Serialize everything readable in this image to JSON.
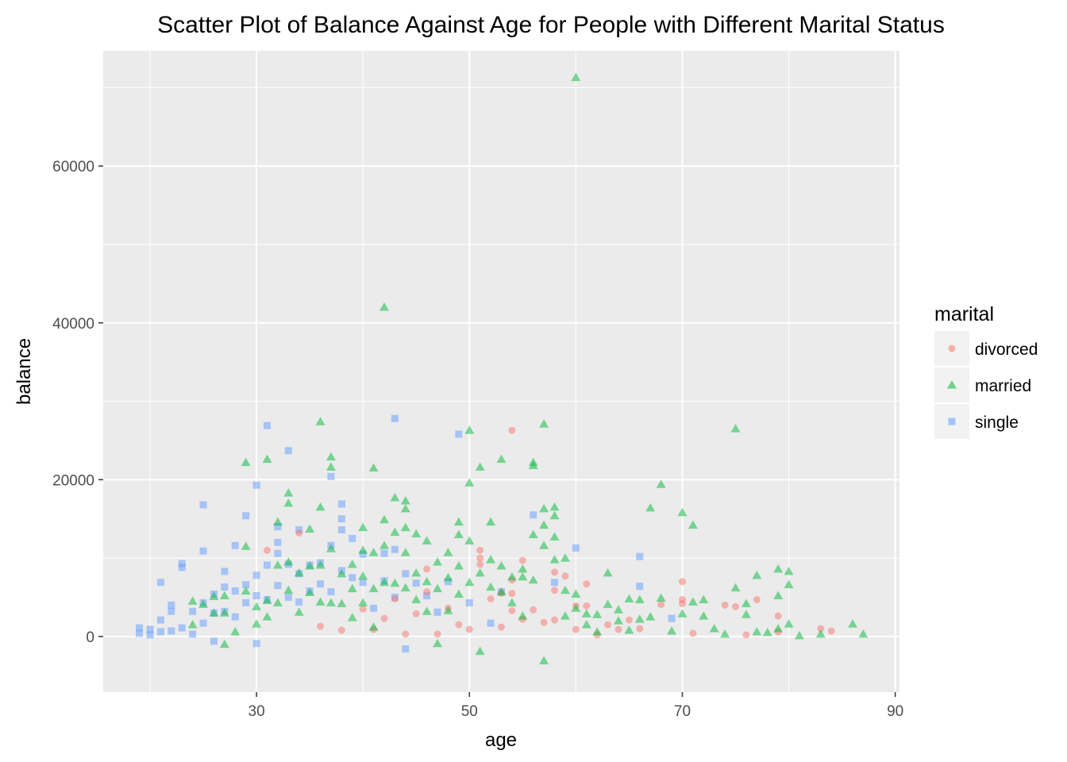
{
  "chart_data": {
    "type": "scatter",
    "title": "Scatter Plot of Balance Against Age for People with Different Marital Status",
    "xlabel": "age",
    "ylabel": "balance",
    "xlim": [
      15.6,
      90.4
    ],
    "ylim": [
      -7100,
      74700
    ],
    "x_ticks": [
      30,
      50,
      70,
      90
    ],
    "x_minor_ticks": [
      20,
      40,
      60,
      80
    ],
    "y_ticks": [
      0,
      20000,
      40000,
      60000
    ],
    "y_minor_ticks": [
      -10000,
      10000,
      30000,
      50000,
      70000
    ],
    "grid": true,
    "panel_background": "#ebebeb",
    "legend": {
      "title": "marital",
      "placement": "right",
      "entries": [
        {
          "label": "divorced",
          "shape": "circle",
          "color": "#F8766D"
        },
        {
          "label": "married",
          "shape": "triangle",
          "color": "#00BA38"
        },
        {
          "label": "single",
          "shape": "square",
          "color": "#619CFF"
        }
      ]
    },
    "series": [
      {
        "name": "divorced",
        "shape": "circle",
        "color": "#F8766D",
        "points": [
          [
            31,
            11000
          ],
          [
            34,
            13200
          ],
          [
            36,
            1300
          ],
          [
            38,
            800
          ],
          [
            40,
            3500
          ],
          [
            41,
            900
          ],
          [
            42,
            2300
          ],
          [
            43,
            4800
          ],
          [
            44,
            300
          ],
          [
            45,
            2900
          ],
          [
            46,
            8600
          ],
          [
            46,
            5700
          ],
          [
            47,
            300
          ],
          [
            48,
            3600
          ],
          [
            49,
            1500
          ],
          [
            50,
            900
          ],
          [
            51,
            11000
          ],
          [
            51,
            10000
          ],
          [
            51,
            9200
          ],
          [
            52,
            4800
          ],
          [
            53,
            5500
          ],
          [
            53,
            1200
          ],
          [
            54,
            26300
          ],
          [
            54,
            7200
          ],
          [
            54,
            5500
          ],
          [
            54,
            3300
          ],
          [
            55,
            9700
          ],
          [
            55,
            2200
          ],
          [
            56,
            3400
          ],
          [
            57,
            1800
          ],
          [
            58,
            8200
          ],
          [
            58,
            5900
          ],
          [
            58,
            2100
          ],
          [
            59,
            7700
          ],
          [
            60,
            3900
          ],
          [
            60,
            900
          ],
          [
            61,
            6700
          ],
          [
            61,
            3900
          ],
          [
            62,
            200
          ],
          [
            63,
            1500
          ],
          [
            64,
            900
          ],
          [
            65,
            2100
          ],
          [
            66,
            1000
          ],
          [
            68,
            4100
          ],
          [
            70,
            7000
          ],
          [
            70,
            4700
          ],
          [
            70,
            4200
          ],
          [
            71,
            400
          ],
          [
            74,
            4000
          ],
          [
            75,
            3800
          ],
          [
            76,
            200
          ],
          [
            77,
            4700
          ],
          [
            79,
            2600
          ],
          [
            79,
            600
          ],
          [
            83,
            1000
          ],
          [
            84,
            700
          ]
        ]
      },
      {
        "name": "married",
        "shape": "triangle",
        "color": "#00BA38",
        "points": [
          [
            24,
            4500
          ],
          [
            24,
            1500
          ],
          [
            25,
            4100
          ],
          [
            26,
            5100
          ],
          [
            26,
            3000
          ],
          [
            27,
            5200
          ],
          [
            27,
            3000
          ],
          [
            27,
            -1000
          ],
          [
            28,
            600
          ],
          [
            29,
            22200
          ],
          [
            29,
            11500
          ],
          [
            29,
            5800
          ],
          [
            30,
            3800
          ],
          [
            30,
            1600
          ],
          [
            31,
            22600
          ],
          [
            31,
            4600
          ],
          [
            31,
            2500
          ],
          [
            32,
            14600
          ],
          [
            32,
            9100
          ],
          [
            32,
            4300
          ],
          [
            33,
            18300
          ],
          [
            33,
            17000
          ],
          [
            33,
            9500
          ],
          [
            33,
            5900
          ],
          [
            34,
            8100
          ],
          [
            34,
            3100
          ],
          [
            35,
            13700
          ],
          [
            35,
            9000
          ],
          [
            35,
            5600
          ],
          [
            36,
            27400
          ],
          [
            36,
            16500
          ],
          [
            36,
            9100
          ],
          [
            36,
            4400
          ],
          [
            37,
            22900
          ],
          [
            37,
            21600
          ],
          [
            37,
            11200
          ],
          [
            37,
            4300
          ],
          [
            38,
            8000
          ],
          [
            38,
            4200
          ],
          [
            39,
            9200
          ],
          [
            39,
            6100
          ],
          [
            39,
            2400
          ],
          [
            40,
            13900
          ],
          [
            40,
            11000
          ],
          [
            40,
            7700
          ],
          [
            40,
            4300
          ],
          [
            41,
            21500
          ],
          [
            41,
            10700
          ],
          [
            41,
            6100
          ],
          [
            41,
            1200
          ],
          [
            42,
            42000
          ],
          [
            42,
            14900
          ],
          [
            42,
            11600
          ],
          [
            42,
            6900
          ],
          [
            43,
            17700
          ],
          [
            43,
            13300
          ],
          [
            43,
            6800
          ],
          [
            44,
            17300
          ],
          [
            44,
            16300
          ],
          [
            44,
            13900
          ],
          [
            44,
            10700
          ],
          [
            44,
            6200
          ],
          [
            45,
            13100
          ],
          [
            45,
            8100
          ],
          [
            45,
            4700
          ],
          [
            46,
            12200
          ],
          [
            46,
            7000
          ],
          [
            46,
            3200
          ],
          [
            47,
            9500
          ],
          [
            47,
            6100
          ],
          [
            47,
            -900
          ],
          [
            48,
            10700
          ],
          [
            48,
            7500
          ],
          [
            48,
            3300
          ],
          [
            49,
            14600
          ],
          [
            49,
            13000
          ],
          [
            49,
            9000
          ],
          [
            49,
            5400
          ],
          [
            50,
            26300
          ],
          [
            50,
            19600
          ],
          [
            50,
            12200
          ],
          [
            50,
            6900
          ],
          [
            51,
            21600
          ],
          [
            51,
            8100
          ],
          [
            51,
            -1900
          ],
          [
            52,
            14600
          ],
          [
            52,
            9800
          ],
          [
            52,
            6300
          ],
          [
            53,
            22600
          ],
          [
            53,
            9000
          ],
          [
            53,
            5700
          ],
          [
            54,
            7600
          ],
          [
            54,
            4300
          ],
          [
            55,
            8600
          ],
          [
            55,
            7600
          ],
          [
            55,
            2600
          ],
          [
            56,
            22200
          ],
          [
            56,
            21800
          ],
          [
            56,
            13000
          ],
          [
            56,
            7200
          ],
          [
            57,
            27100
          ],
          [
            57,
            16300
          ],
          [
            57,
            14200
          ],
          [
            57,
            11600
          ],
          [
            57,
            -3100
          ],
          [
            58,
            16500
          ],
          [
            58,
            15400
          ],
          [
            58,
            12700
          ],
          [
            58,
            9800
          ],
          [
            59,
            10000
          ],
          [
            59,
            5900
          ],
          [
            59,
            2600
          ],
          [
            60,
            71300
          ],
          [
            60,
            5400
          ],
          [
            60,
            3600
          ],
          [
            61,
            2900
          ],
          [
            61,
            1500
          ],
          [
            62,
            2800
          ],
          [
            62,
            600
          ],
          [
            63,
            8100
          ],
          [
            63,
            4100
          ],
          [
            64,
            3400
          ],
          [
            64,
            2000
          ],
          [
            65,
            4800
          ],
          [
            65,
            800
          ],
          [
            66,
            4700
          ],
          [
            66,
            2200
          ],
          [
            67,
            16400
          ],
          [
            67,
            2500
          ],
          [
            68,
            19400
          ],
          [
            68,
            4900
          ],
          [
            69,
            700
          ],
          [
            70,
            15800
          ],
          [
            70,
            2900
          ],
          [
            71,
            14200
          ],
          [
            71,
            4400
          ],
          [
            72,
            4700
          ],
          [
            72,
            2600
          ],
          [
            73,
            1000
          ],
          [
            74,
            300
          ],
          [
            75,
            26500
          ],
          [
            75,
            6200
          ],
          [
            76,
            4200
          ],
          [
            76,
            2800
          ],
          [
            77,
            7800
          ],
          [
            77,
            600
          ],
          [
            78,
            500
          ],
          [
            79,
            8600
          ],
          [
            79,
            5200
          ],
          [
            79,
            1000
          ],
          [
            80,
            8300
          ],
          [
            80,
            6600
          ],
          [
            80,
            1600
          ],
          [
            81,
            100
          ],
          [
            83,
            300
          ],
          [
            86,
            1600
          ],
          [
            87,
            300
          ]
        ]
      },
      {
        "name": "single",
        "shape": "square",
        "color": "#619CFF",
        "points": [
          [
            19,
            1100
          ],
          [
            19,
            400
          ],
          [
            20,
            900
          ],
          [
            20,
            200
          ],
          [
            21,
            6900
          ],
          [
            21,
            2100
          ],
          [
            21,
            600
          ],
          [
            22,
            4000
          ],
          [
            22,
            3200
          ],
          [
            22,
            700
          ],
          [
            23,
            9300
          ],
          [
            23,
            8800
          ],
          [
            23,
            1100
          ],
          [
            24,
            3200
          ],
          [
            24,
            300
          ],
          [
            25,
            16800
          ],
          [
            25,
            10900
          ],
          [
            25,
            4300
          ],
          [
            25,
            1700
          ],
          [
            26,
            5400
          ],
          [
            26,
            3000
          ],
          [
            26,
            -600
          ],
          [
            27,
            8300
          ],
          [
            27,
            6300
          ],
          [
            27,
            3200
          ],
          [
            28,
            11600
          ],
          [
            28,
            5800
          ],
          [
            28,
            2500
          ],
          [
            29,
            15400
          ],
          [
            29,
            6600
          ],
          [
            29,
            4300
          ],
          [
            30,
            19300
          ],
          [
            30,
            7800
          ],
          [
            30,
            5200
          ],
          [
            30,
            -900
          ],
          [
            31,
            26900
          ],
          [
            31,
            9100
          ],
          [
            31,
            4700
          ],
          [
            32,
            14000
          ],
          [
            32,
            12000
          ],
          [
            32,
            10600
          ],
          [
            32,
            6500
          ],
          [
            33,
            23700
          ],
          [
            33,
            9200
          ],
          [
            33,
            5000
          ],
          [
            34,
            13600
          ],
          [
            34,
            8000
          ],
          [
            34,
            4400
          ],
          [
            35,
            9100
          ],
          [
            35,
            5800
          ],
          [
            36,
            9400
          ],
          [
            36,
            6700
          ],
          [
            37,
            20400
          ],
          [
            37,
            11600
          ],
          [
            37,
            5700
          ],
          [
            38,
            16900
          ],
          [
            38,
            15000
          ],
          [
            38,
            13600
          ],
          [
            38,
            8400
          ],
          [
            39,
            12500
          ],
          [
            39,
            7500
          ],
          [
            40,
            10500
          ],
          [
            40,
            6900
          ],
          [
            41,
            3600
          ],
          [
            42,
            10600
          ],
          [
            42,
            7100
          ],
          [
            43,
            27800
          ],
          [
            43,
            11100
          ],
          [
            43,
            5000
          ],
          [
            44,
            8000
          ],
          [
            44,
            -1600
          ],
          [
            45,
            6800
          ],
          [
            46,
            5200
          ],
          [
            47,
            3100
          ],
          [
            48,
            7000
          ],
          [
            49,
            25800
          ],
          [
            50,
            4300
          ],
          [
            52,
            1700
          ],
          [
            53,
            5700
          ],
          [
            56,
            15500
          ],
          [
            58,
            6900
          ],
          [
            60,
            11300
          ],
          [
            66,
            10200
          ],
          [
            66,
            6400
          ],
          [
            69,
            2300
          ]
        ]
      }
    ]
  }
}
